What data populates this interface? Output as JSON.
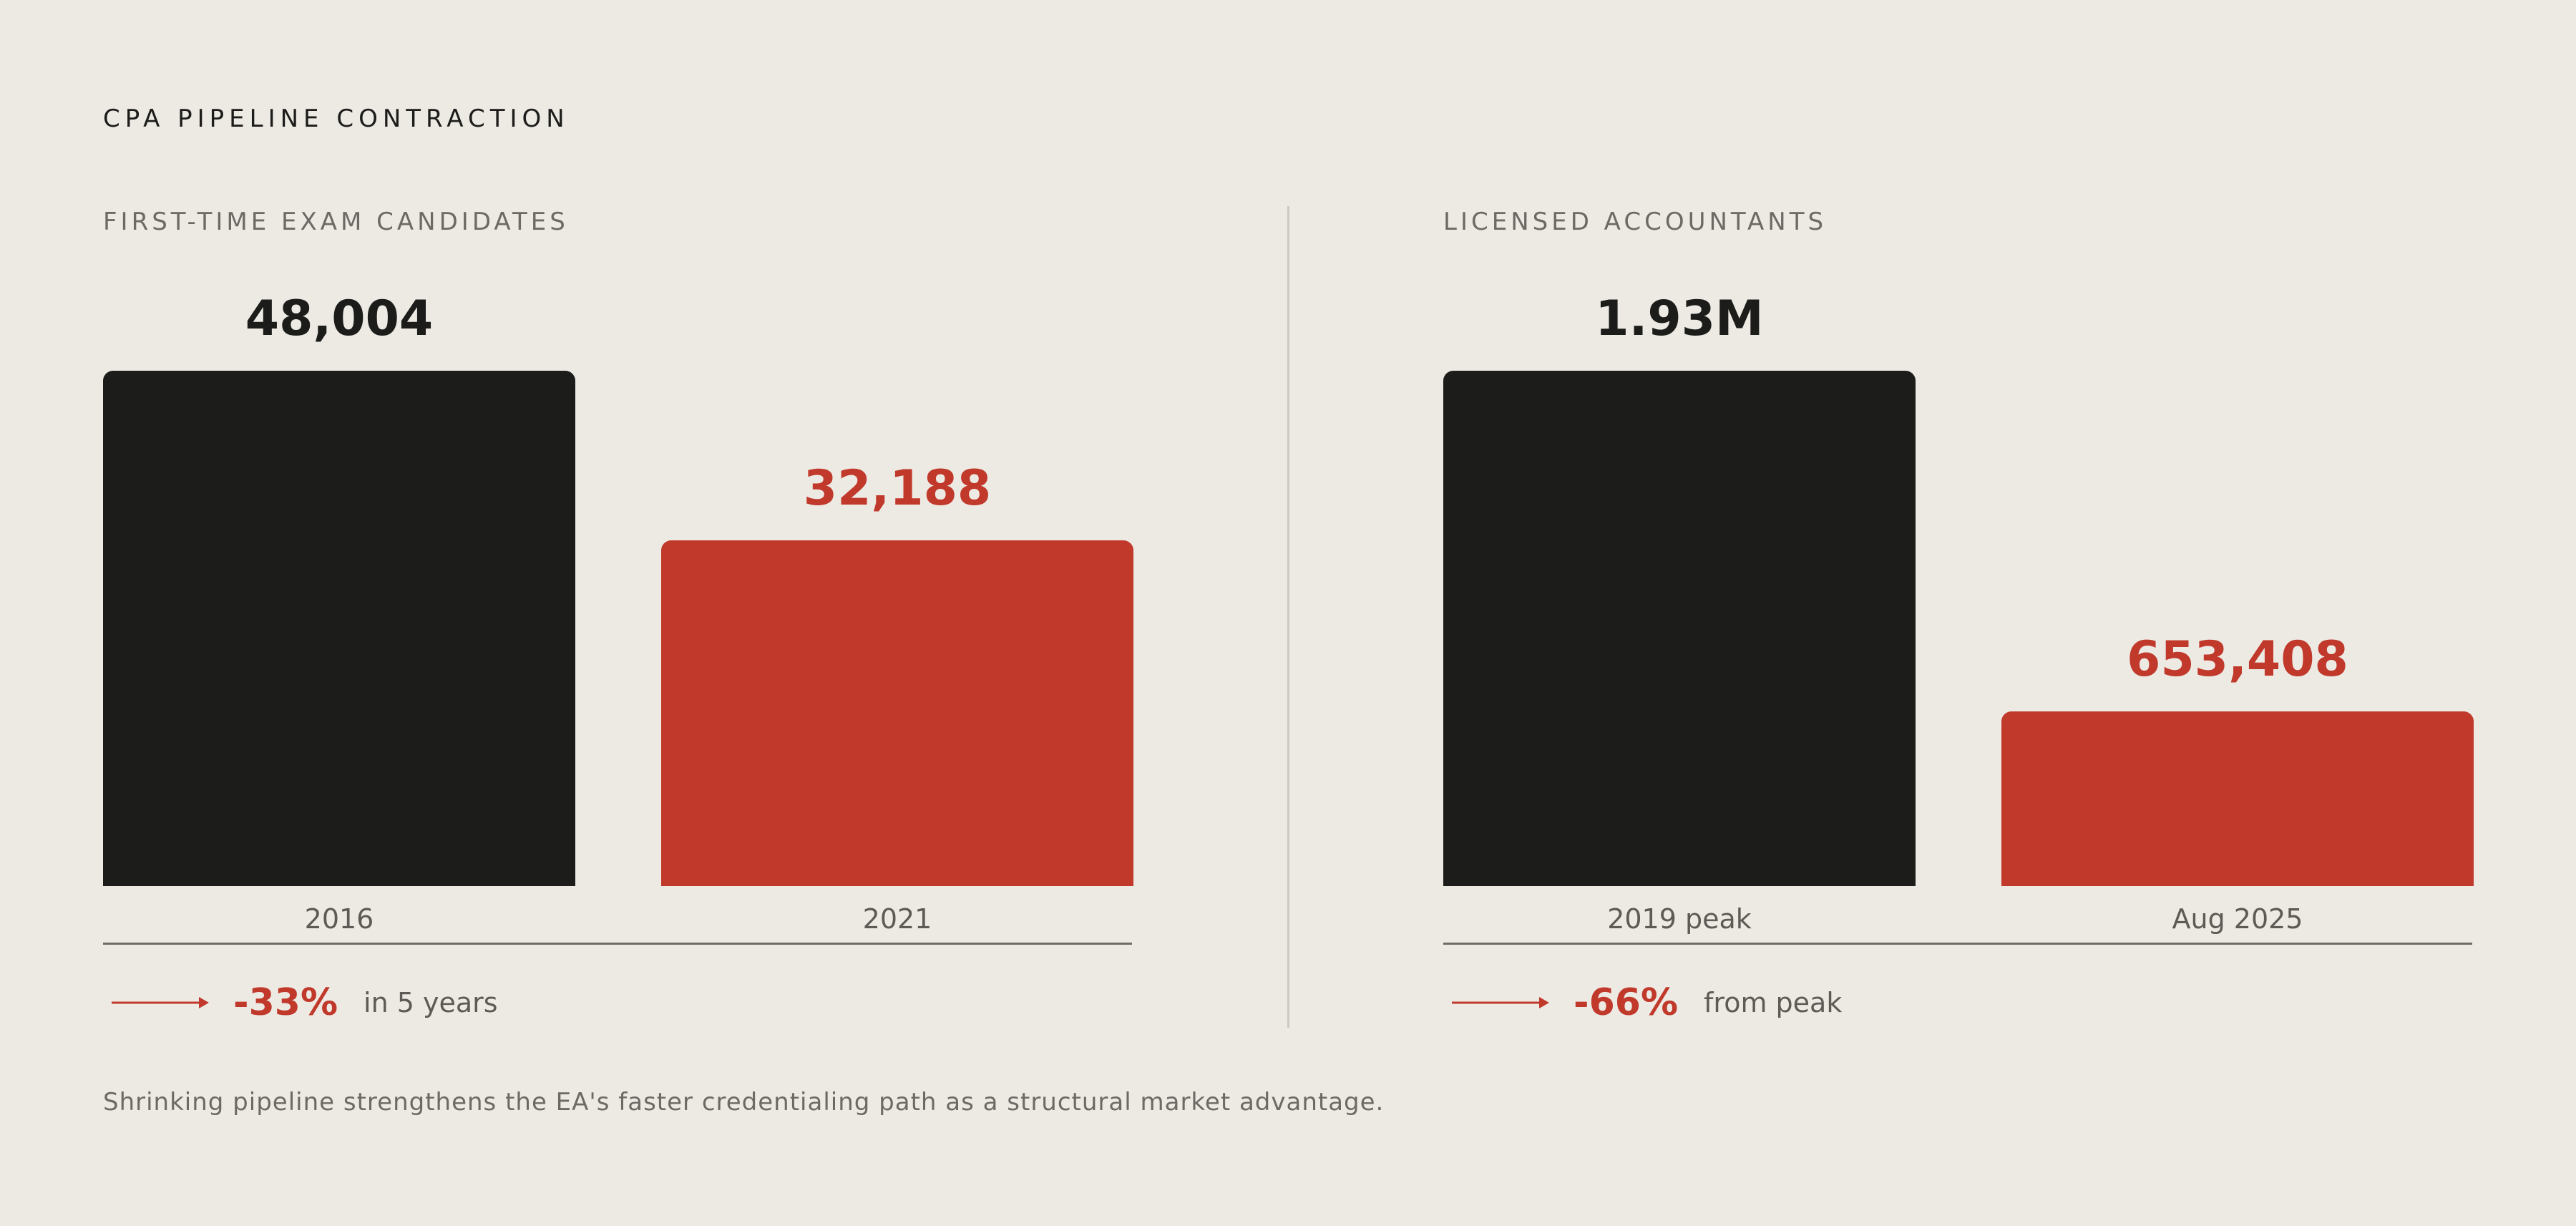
{
  "title": "CPA PIPELINE CONTRACTION",
  "footnote": "Shrinking pipeline strengthens the EA's faster credentialing path as a structural market advantage.",
  "colors": {
    "background": "#edeae4",
    "dark": "#1c1c1a",
    "accent": "#c0392b",
    "muted_text": "#6d6a65"
  },
  "panels": [
    {
      "label": "FIRST-TIME EXAM CANDIDATES",
      "bars": [
        {
          "category": "2016",
          "value_label": "48,004",
          "color": "dark"
        },
        {
          "category": "2021",
          "value_label": "32,188",
          "color": "red"
        }
      ],
      "change": {
        "icon": "arrow-right-icon",
        "percent": "-33%",
        "description": "in 5 years"
      }
    },
    {
      "label": "LICENSED ACCOUNTANTS",
      "bars": [
        {
          "category": "2019 peak",
          "value_label": "1.93M",
          "color": "dark"
        },
        {
          "category": "Aug 2025",
          "value_label": "653,408",
          "color": "red"
        }
      ],
      "change": {
        "icon": "arrow-right-icon",
        "percent": "-66%",
        "description": "from peak"
      }
    }
  ],
  "chart_data": [
    {
      "type": "bar",
      "title": "FIRST-TIME EXAM CANDIDATES",
      "categories": [
        "2016",
        "2021"
      ],
      "values": [
        48004,
        32188
      ],
      "data_labels": [
        "48,004",
        "32,188"
      ],
      "colors": [
        "#1c1c1a",
        "#c0392b"
      ],
      "ylim": [
        0,
        48004
      ],
      "grid": false,
      "annotation": "-33% in 5 years"
    },
    {
      "type": "bar",
      "title": "LICENSED ACCOUNTANTS",
      "categories": [
        "2019 peak",
        "Aug 2025"
      ],
      "values": [
        1930000,
        653408
      ],
      "data_labels": [
        "1.93M",
        "653,408"
      ],
      "colors": [
        "#1c1c1a",
        "#c0392b"
      ],
      "ylim": [
        0,
        1930000
      ],
      "grid": false,
      "annotation": "-66% from peak"
    }
  ]
}
